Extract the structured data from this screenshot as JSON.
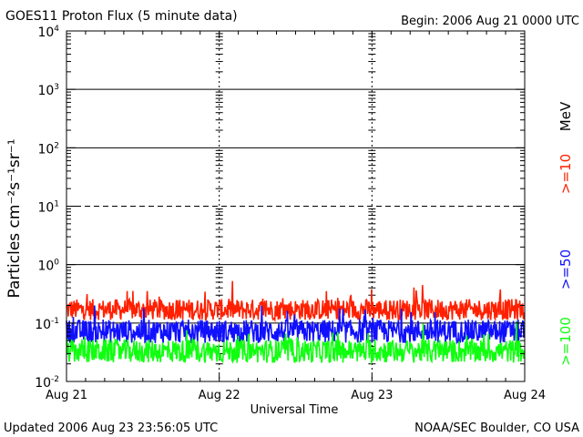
{
  "chart_data": {
    "type": "line",
    "title": "GOES11 Proton Flux (5 minute data)",
    "begin_label": "Begin: 2006 Aug 21 0000 UTC",
    "xlabel": "Universal Time",
    "ylabel": "Particles cm⁻²s⁻¹sr⁻¹",
    "yscale": "log",
    "ylim": [
      0.01,
      10000
    ],
    "y_ticks": [
      {
        "value": 10000,
        "base": "10",
        "exp": "4"
      },
      {
        "value": 1000,
        "base": "10",
        "exp": "3"
      },
      {
        "value": 100,
        "base": "10",
        "exp": "2"
      },
      {
        "value": 10,
        "base": "10",
        "exp": "1"
      },
      {
        "value": 1,
        "base": "10",
        "exp": "0"
      },
      {
        "value": 0.1,
        "base": "10",
        "exp": "-1"
      },
      {
        "value": 0.01,
        "base": "10",
        "exp": "-2"
      }
    ],
    "x_range_days": [
      0,
      3
    ],
    "x_ticks": [
      {
        "day": 0,
        "label": "Aug 21"
      },
      {
        "day": 1,
        "label": "Aug 22"
      },
      {
        "day": 2,
        "label": "Aug 23"
      },
      {
        "day": 3,
        "label": "Aug 24"
      }
    ],
    "threshold_lines": [
      {
        "value": 1000,
        "style": "solid"
      },
      {
        "value": 100,
        "style": "solid"
      },
      {
        "value": 10,
        "style": "dashed"
      },
      {
        "value": 1,
        "style": "solid"
      },
      {
        "value": 0.1,
        "style": "solid"
      }
    ],
    "series": [
      {
        "name": ">=10",
        "color": "#ff2000",
        "base": 0.17,
        "noise": 0.18,
        "min": 0.09,
        "max": 0.55
      },
      {
        "name": ">=50",
        "color": "#1010ff",
        "base": 0.072,
        "noise": 0.2,
        "min": 0.035,
        "max": 0.2
      },
      {
        "name": ">=100",
        "color": "#10ff10",
        "base": 0.033,
        "noise": 0.2,
        "min": 0.018,
        "max": 0.13
      }
    ],
    "unit_label": "MeV",
    "data_end_day": 2.998
  },
  "footer": {
    "updated": "Updated 2006 Aug 23 23:56:05 UTC",
    "credit": "NOAA/SEC Boulder, CO USA"
  }
}
